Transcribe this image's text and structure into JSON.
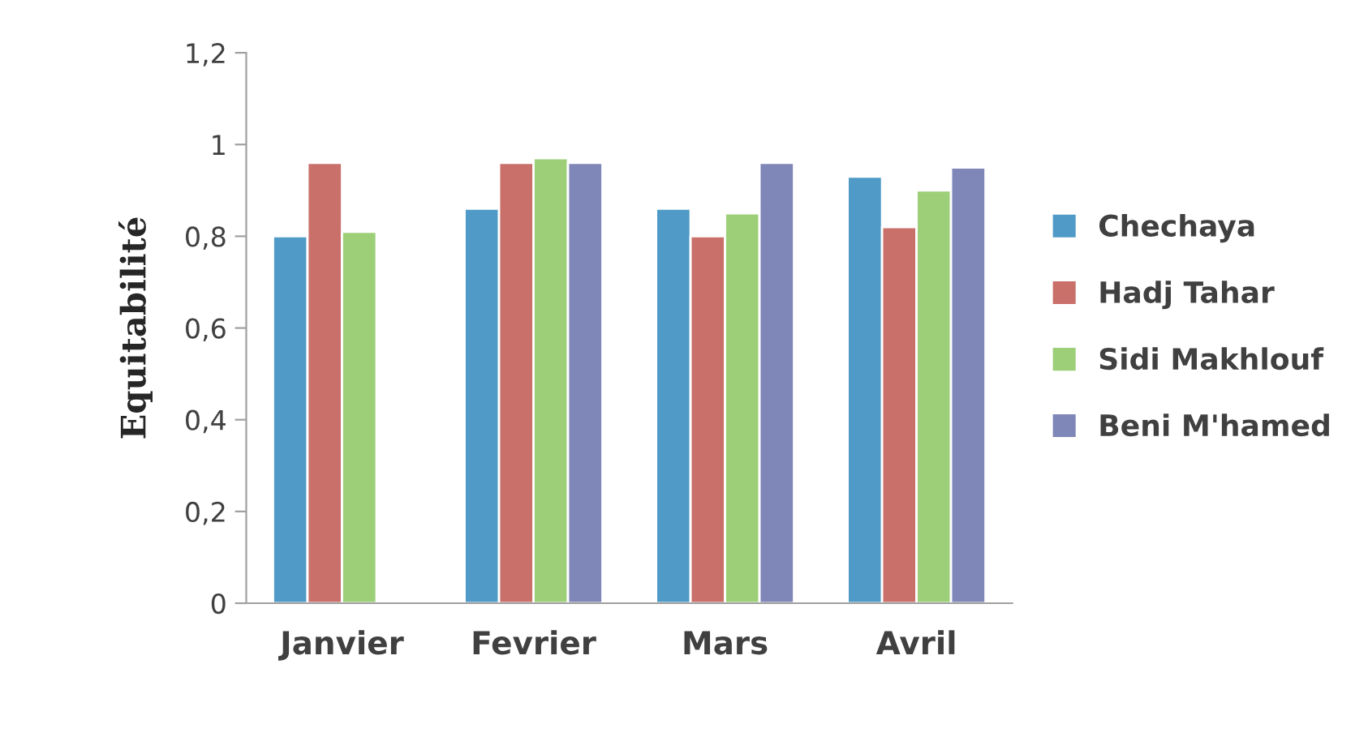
{
  "chart_data": {
    "type": "bar",
    "ylabel": "Equitabilité",
    "categories": [
      "Janvier",
      "Fevrier",
      "Mars",
      "Avril"
    ],
    "series": [
      {
        "name": "Chechaya",
        "color": "#4f9ac6",
        "values": [
          0.8,
          0.86,
          0.86,
          0.93
        ]
      },
      {
        "name": "Hadj Tahar",
        "color": "#c9706a",
        "values": [
          0.96,
          0.96,
          0.8,
          0.82
        ]
      },
      {
        "name": "Sidi Makhlouf",
        "color": "#9ccf78",
        "values": [
          0.81,
          0.97,
          0.85,
          0.9
        ]
      },
      {
        "name": "Beni M'hamed",
        "color": "#7f86b8",
        "values": [
          null,
          0.96,
          0.96,
          0.95
        ]
      }
    ],
    "ylim": [
      0,
      1.2
    ],
    "yticks": [
      0,
      {
        "value": 0.2,
        "label": "0,2"
      },
      {
        "value": 0.4,
        "label": "0,4"
      },
      {
        "value": 0.6,
        "label": "0,6"
      },
      {
        "value": 0.8,
        "label": "0,8"
      },
      1,
      {
        "value": 1.2,
        "label": "1,2"
      }
    ],
    "grid": false,
    "legend": "right"
  }
}
